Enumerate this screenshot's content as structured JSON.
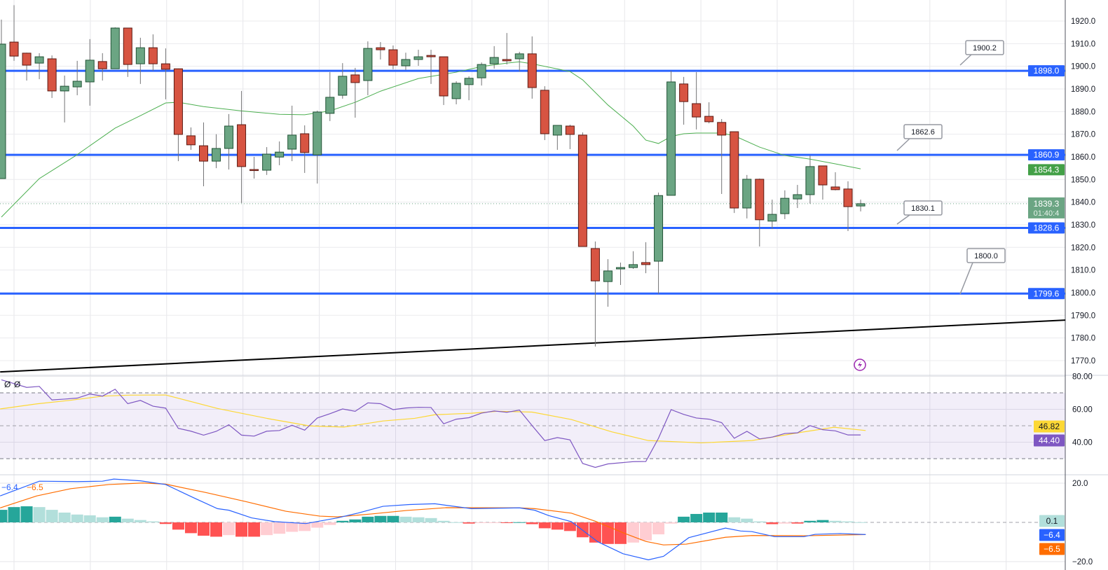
{
  "chart_data": {
    "type": "candlestick",
    "price_axis": {
      "ticks": [
        "1770.0",
        "1780.0",
        "1790.0",
        "1800.0",
        "1810.0",
        "1820.0",
        "1830.0",
        "1840.0",
        "1850.0",
        "1860.0",
        "1870.0",
        "1880.0",
        "1890.0",
        "1900.0",
        "1910.0",
        "1920.0"
      ],
      "range": [
        1763,
        1929
      ]
    },
    "candles": [
      [
        1850.4,
        1920.6,
        1850.4,
        1909.8
      ],
      [
        1910.7,
        1927,
        1902.4,
        1904.5
      ],
      [
        1905.8,
        1906,
        1893.7,
        1900.5
      ],
      [
        1901.4,
        1905.8,
        1894.3,
        1904.2
      ],
      [
        1903.3,
        1904.8,
        1886,
        1889.1
      ],
      [
        1889.1,
        1895.9,
        1875.2,
        1891.2
      ],
      [
        1890.9,
        1902.4,
        1887.2,
        1893.4
      ],
      [
        1893.1,
        1912,
        1882.6,
        1902.7
      ],
      [
        1902.1,
        1905.8,
        1893.7,
        1898.9
      ],
      [
        1898.9,
        1917.2,
        1898.9,
        1916.9
      ],
      [
        1916.9,
        1916.9,
        1895.3,
        1900.8
      ],
      [
        1901.1,
        1912.6,
        1892.2,
        1908.2
      ],
      [
        1908.2,
        1914.1,
        1898,
        1901.1
      ],
      [
        1901.1,
        1907.9,
        1885.4,
        1898.7
      ],
      [
        1898.9,
        1899,
        1858.1,
        1869.9
      ],
      [
        1869.3,
        1873,
        1863.1,
        1865.3
      ],
      [
        1864.9,
        1875.2,
        1847,
        1858.1
      ],
      [
        1858.1,
        1870,
        1855,
        1863.7
      ],
      [
        1863.7,
        1878.9,
        1854.4,
        1873.6
      ],
      [
        1874.2,
        1889.1,
        1839.6,
        1855.7
      ],
      [
        1854.4,
        1860,
        1850.4,
        1854.1
      ],
      [
        1854.1,
        1864.3,
        1852,
        1861.2
      ],
      [
        1859.9,
        1866.8,
        1856.3,
        1862.1
      ],
      [
        1863.4,
        1882.6,
        1858.1,
        1869.6
      ],
      [
        1870.2,
        1873.9,
        1852.9,
        1861.9
      ],
      [
        1860.9,
        1880.4,
        1848.2,
        1879.8
      ],
      [
        1879.2,
        1897.4,
        1875.8,
        1886.3
      ],
      [
        1887.2,
        1901.4,
        1885.7,
        1895.6
      ],
      [
        1896.2,
        1899.3,
        1877.3,
        1892.8
      ],
      [
        1893.7,
        1911,
        1887.2,
        1907.9
      ],
      [
        1908.2,
        1910.7,
        1903,
        1907.3
      ],
      [
        1907.3,
        1909.2,
        1898.7,
        1900.5
      ],
      [
        1900.2,
        1906,
        1898.3,
        1903
      ],
      [
        1903,
        1907.3,
        1900.2,
        1904.2
      ],
      [
        1904.8,
        1907.3,
        1892.2,
        1904.2
      ],
      [
        1904.2,
        1904.2,
        1882.9,
        1886.9
      ],
      [
        1885.7,
        1893.4,
        1883.2,
        1892.5
      ],
      [
        1891.9,
        1895.6,
        1885,
        1894.7
      ],
      [
        1894.9,
        1901.7,
        1891.5,
        1900.8
      ],
      [
        1901.1,
        1908.9,
        1899,
        1903.9
      ],
      [
        1903,
        1914.7,
        1900.8,
        1902.4
      ],
      [
        1903.3,
        1906.4,
        1897.7,
        1905.5
      ],
      [
        1905.5,
        1913.2,
        1885.7,
        1890.6
      ],
      [
        1889.4,
        1891.2,
        1867.4,
        1870.2
      ],
      [
        1869.6,
        1873.9,
        1863.1,
        1873.9
      ],
      [
        1873.6,
        1874.2,
        1863.4,
        1869.9
      ],
      [
        1869.6,
        1870.8,
        1820.4,
        1820.4
      ],
      [
        1819.5,
        1822.6,
        1776.2,
        1805.2
      ],
      [
        1804.9,
        1814.8,
        1793.8,
        1809.6
      ],
      [
        1810.5,
        1813.3,
        1803.4,
        1811.1
      ],
      [
        1811.1,
        1818.3,
        1810.5,
        1812.4
      ],
      [
        1813.3,
        1822.3,
        1808.6,
        1812.4
      ],
      [
        1813.9,
        1844.2,
        1799.4,
        1842.9
      ],
      [
        1843,
        1898,
        1843,
        1893.1
      ],
      [
        1892.2,
        1895.3,
        1874.2,
        1884.4
      ],
      [
        1883.5,
        1897.4,
        1872.1,
        1877.6
      ],
      [
        1877.9,
        1884.1,
        1874.8,
        1875.5
      ],
      [
        1875.2,
        1876.7,
        1843.6,
        1869.6
      ],
      [
        1871.1,
        1871.1,
        1835.2,
        1837.4
      ],
      [
        1837.4,
        1852,
        1832.8,
        1850.1
      ],
      [
        1850.1,
        1850.4,
        1820.4,
        1832.2
      ],
      [
        1831.6,
        1841.1,
        1828.1,
        1834.6
      ],
      [
        1834.9,
        1845.2,
        1832.5,
        1841.7
      ],
      [
        1841.4,
        1847.6,
        1837.4,
        1843.3
      ],
      [
        1843.3,
        1860.6,
        1839.3,
        1855.7
      ],
      [
        1856,
        1856,
        1841.1,
        1847.6
      ],
      [
        1846.7,
        1853.2,
        1845.2,
        1845.5
      ],
      [
        1845.8,
        1849.2,
        1827.2,
        1838
      ],
      [
        1838.3,
        1841.1,
        1835.9,
        1839.3
      ]
    ],
    "moving_average": {
      "points": [
        [
          0,
          1833.4
        ],
        [
          3,
          1850.4
        ],
        [
          5.9,
          1860.6
        ],
        [
          9,
          1872.7
        ],
        [
          11,
          1878.2
        ],
        [
          13,
          1883.8
        ],
        [
          14,
          1884.1
        ],
        [
          16,
          1882.2
        ],
        [
          19,
          1880.3
        ],
        [
          22,
          1878.8
        ],
        [
          24,
          1878.6
        ],
        [
          26,
          1880.3
        ],
        [
          28,
          1884.1
        ],
        [
          30,
          1889
        ],
        [
          33,
          1894.6
        ],
        [
          36,
          1897.4
        ],
        [
          38,
          1899.9
        ],
        [
          40,
          1901.4
        ],
        [
          41,
          1902
        ],
        [
          42,
          1901.1
        ],
        [
          45,
          1897.7
        ],
        [
          46,
          1894
        ],
        [
          48,
          1882.9
        ],
        [
          50,
          1873.6
        ],
        [
          51,
          1867.4
        ],
        [
          52,
          1865.9
        ],
        [
          53,
          1869
        ],
        [
          54,
          1870.2
        ],
        [
          55,
          1870.5
        ],
        [
          57,
          1870.5
        ],
        [
          58,
          1869.3
        ],
        [
          60,
          1864.3
        ],
        [
          62,
          1860.6
        ],
        [
          64,
          1859
        ],
        [
          66,
          1856.9
        ],
        [
          68,
          1854.7
        ]
      ],
      "last_label": "1854.3"
    },
    "last_price": {
      "value": 1839.3,
      "label": "1839.3",
      "countdown": "01:40:4"
    },
    "levels": [
      {
        "price": 1898.0,
        "label": "1898.0",
        "note": "1900.2"
      },
      {
        "price": 1860.9,
        "label": "1860.9",
        "note": "1862.6"
      },
      {
        "price": 1828.6,
        "label": "1828.6",
        "note": "1830.1"
      },
      {
        "price": 1799.6,
        "label": "1799.6",
        "note": "1800.0"
      }
    ],
    "trendline": [
      [
        -0.1,
        1765.0
      ],
      [
        84.2,
        1787.9
      ]
    ],
    "rsi": {
      "legend": [
        "Ø",
        "Ø"
      ],
      "ticks": [
        "80.00",
        "60.00",
        "40.00"
      ],
      "tick_values": [
        80,
        60,
        40
      ],
      "bands": [
        70,
        50,
        30
      ],
      "values": [
        77.9,
        75.6,
        73.3,
        73.9,
        65.7,
        66.2,
        66.8,
        69.3,
        68,
        72.2,
        63.4,
        65.4,
        61.9,
        60.7,
        48.4,
        46.7,
        44.3,
        46.6,
        50.6,
        44.3,
        43.7,
        46.7,
        47.1,
        50.3,
        47.3,
        54.7,
        57.3,
        60.2,
        58.8,
        63.9,
        63.4,
        59.8,
        60.8,
        61.2,
        61.1,
        51.2,
        54,
        54.9,
        57.7,
        59,
        58.2,
        59.5,
        50.1,
        41,
        42.8,
        41.4,
        27.1,
        24.7,
        26.8,
        27.5,
        28.2,
        28.3,
        42.4,
        59.8,
        56.9,
        54.7,
        54,
        51.9,
        42.4,
        46.6,
        42,
        43.1,
        45.3,
        45.7,
        50.1,
        47.6,
        46.9,
        44.4,
        44.4
      ],
      "ma_points": [
        [
          -0.1,
          60.2
        ],
        [
          2.8,
          63.3
        ],
        [
          5.5,
          65.5
        ],
        [
          8,
          68
        ],
        [
          10.1,
          68.6
        ],
        [
          13,
          68.7
        ],
        [
          17.1,
          60.5
        ],
        [
          21.2,
          54.2
        ],
        [
          24.4,
          49.9
        ],
        [
          27.1,
          49.2
        ],
        [
          30.2,
          52.9
        ],
        [
          32.7,
          54.5
        ],
        [
          34.3,
          56.7
        ],
        [
          37.2,
          57.6
        ],
        [
          39.3,
          58.8
        ],
        [
          42,
          58.3
        ],
        [
          45.1,
          53.8
        ],
        [
          48.3,
          46.3
        ],
        [
          51.2,
          41
        ],
        [
          55.4,
          39.6
        ],
        [
          59.4,
          41
        ],
        [
          63.2,
          45.9
        ],
        [
          65.9,
          49.1
        ],
        [
          68.4,
          47.1
        ]
      ],
      "rsi_label": "44.40",
      "ma_label": "46.82"
    },
    "macd": {
      "legend": [
        "−6.4",
        "−6.5"
      ],
      "ticks": [
        "20.0",
        "−20.0"
      ],
      "tick_values": [
        20,
        -20
      ],
      "histogram": [
        6.4,
        7.8,
        8.2,
        7.8,
        6.4,
        5.0,
        4.0,
        3.6,
        2.6,
        2.9,
        1.9,
        1.2,
        0.5,
        -0.8,
        -3.7,
        -5.5,
        -6.8,
        -7.3,
        -6.5,
        -7.3,
        -7.3,
        -6.5,
        -5.8,
        -4.8,
        -4.4,
        -2.7,
        -1.3,
        0.8,
        1.5,
        2.9,
        3.3,
        3.3,
        2.9,
        2.6,
        2.2,
        0.8,
        0.1,
        -0.6,
        -0.3,
        -0.2,
        -0.3,
        0.1,
        -0.9,
        -3.0,
        -3.7,
        -4.4,
        -7.6,
        -10.3,
        -11,
        -11,
        -10.3,
        -9.2,
        -6.1,
        -0.6,
        2.9,
        4.3,
        5.0,
        5.0,
        2.6,
        1.9,
        0.5,
        -0.9,
        -0.6,
        -0.6,
        0.8,
        1.2,
        0.8,
        0.5,
        0.1
      ],
      "macd_points": [
        [
          -0.1,
          13.5
        ],
        [
          3,
          21
        ],
        [
          6,
          20.8
        ],
        [
          8,
          21
        ],
        [
          8.9,
          22.1
        ],
        [
          11,
          21.2
        ],
        [
          13,
          19.3
        ],
        [
          15.3,
          12.3
        ],
        [
          17.1,
          7
        ],
        [
          18,
          6.2
        ],
        [
          19.8,
          2.3
        ],
        [
          21.6,
          0.4
        ],
        [
          24.1,
          -0.6
        ],
        [
          26.6,
          2.3
        ],
        [
          28.2,
          4.7
        ],
        [
          30.2,
          8.2
        ],
        [
          32.3,
          9.1
        ],
        [
          34.3,
          9.5
        ],
        [
          37.2,
          7
        ],
        [
          41,
          7.4
        ],
        [
          42.2,
          6.2
        ],
        [
          43.3,
          3.5
        ],
        [
          45.1,
          0.4
        ],
        [
          47.2,
          -9.9
        ],
        [
          49.2,
          -16
        ],
        [
          51.2,
          -19.1
        ],
        [
          52.4,
          -17.3
        ],
        [
          54.4,
          -7.8
        ],
        [
          57.3,
          -2.9
        ],
        [
          58.5,
          -4.4
        ],
        [
          59.4,
          -4.7
        ],
        [
          61.2,
          -7.3
        ],
        [
          63.5,
          -7.3
        ],
        [
          64.4,
          -6.1
        ],
        [
          66.4,
          -5.7
        ],
        [
          68.4,
          -6.2
        ]
      ],
      "signal_points": [
        [
          -0.1,
          7.4
        ],
        [
          2.8,
          13.5
        ],
        [
          5.5,
          17.2
        ],
        [
          8.5,
          19.3
        ],
        [
          11.2,
          20.1
        ],
        [
          13,
          19.5
        ],
        [
          16.2,
          15.2
        ],
        [
          19.4,
          10.5
        ],
        [
          22.5,
          5.7
        ],
        [
          25.2,
          3.2
        ],
        [
          26.6,
          2.8
        ],
        [
          29.3,
          4.3
        ],
        [
          32.1,
          6.1
        ],
        [
          35.2,
          7.5
        ],
        [
          41,
          7.4
        ],
        [
          42.2,
          7
        ],
        [
          45.1,
          4.7
        ],
        [
          47,
          0.6
        ],
        [
          49.2,
          -5.3
        ],
        [
          51,
          -9.7
        ],
        [
          52.4,
          -11.5
        ],
        [
          54.2,
          -11.1
        ],
        [
          57.3,
          -7.6
        ],
        [
          59.4,
          -6.7
        ],
        [
          63.7,
          -6.8
        ],
        [
          68.4,
          -6.2
        ]
      ],
      "hist_label": "0.1",
      "macd_label": "−6.4",
      "signal_label": "−6.5"
    }
  },
  "colors": {
    "up": "#6ba583",
    "up_border": "#225437",
    "down": "#d75442",
    "down_border": "#5b1a13",
    "wick": "#737375",
    "level": "#2962ff",
    "ma": "#4caf50",
    "rsi": "#7e57c2",
    "rsi_ma": "#fdd835",
    "rsi_band": "#7e57c21a",
    "macd": "#2962ff",
    "signal": "#ff6d00",
    "hist_up_strong": "#26a69a",
    "hist_up_weak": "#b2dfdb",
    "hist_down_strong": "#ff5252",
    "hist_down_weak": "#ffcdd2",
    "ma_label": "#43a047",
    "last_price": "#6ba583",
    "alert_icon": "#9c27b0"
  }
}
